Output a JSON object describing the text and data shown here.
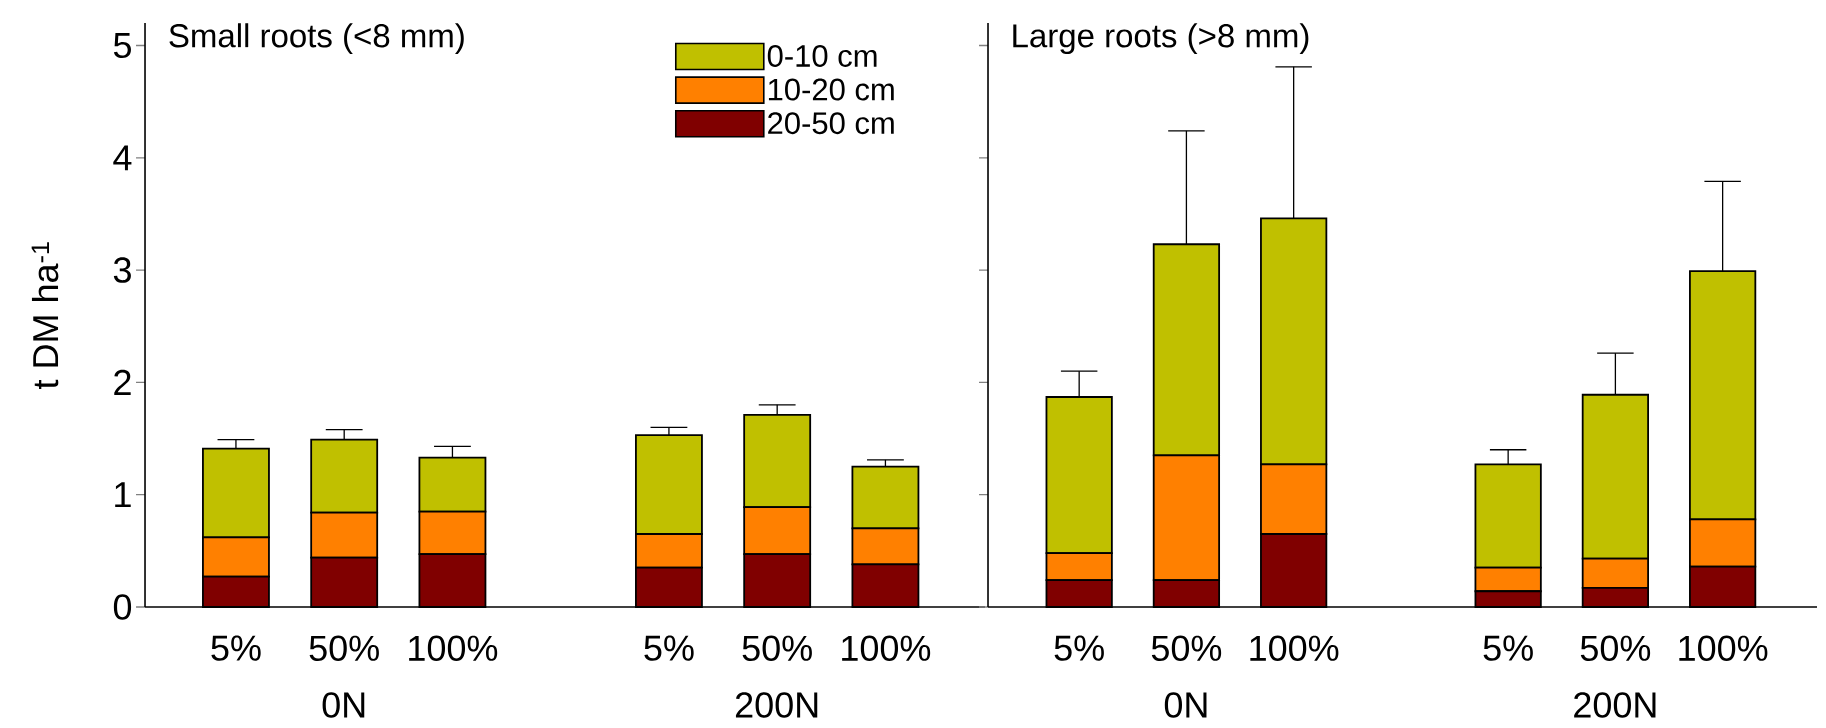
{
  "chart_data": [
    {
      "type": "bar",
      "stacked": true,
      "title": "Small roots (<8 mm)",
      "ylabel": "t DM ha$^{-1}$",
      "categories": [
        "5%",
        "50%",
        "100%",
        null,
        "5%",
        "50%",
        "100%"
      ],
      "series": [
        {
          "name": "20-50 cm",
          "color": "#800000",
          "values": [
            0.27,
            0.44,
            0.47,
            null,
            0.35,
            0.47,
            0.38
          ]
        },
        {
          "name": "10-20 cm",
          "color": "#ff8000",
          "values": [
            0.35,
            0.4,
            0.38,
            null,
            0.3,
            0.42,
            0.32
          ]
        },
        {
          "name": "0-10 cm",
          "color": "#c0c000",
          "values": [
            0.79,
            0.65,
            0.48,
            null,
            0.88,
            0.82,
            0.55
          ],
          "errors": [
            [
              1.41,
              1.49
            ],
            [
              1.49,
              1.58
            ],
            [
              1.33,
              1.43
            ],
            null,
            [
              1.53,
              1.6
            ],
            [
              1.71,
              1.8
            ],
            [
              1.25,
              1.31
            ]
          ]
        }
      ],
      "ylim": [
        0,
        5.2
      ],
      "yticks": [
        0,
        1,
        2,
        3,
        4,
        5
      ],
      "legend": "top right",
      "annotations": [
        "0N",
        "200N"
      ]
    },
    {
      "type": "bar",
      "stacked": true,
      "title": "Large roots (>8 mm)",
      "categories": [
        "5%",
        "50%",
        "100%",
        null,
        "5%",
        "50%",
        "100%"
      ],
      "series": [
        {
          "color": "#800000",
          "values": [
            0.24,
            0.24,
            0.65,
            null,
            0.14,
            0.17,
            0.36
          ]
        },
        {
          "color": "#ff8000",
          "values": [
            0.24,
            1.11,
            0.62,
            null,
            0.21,
            0.26,
            0.42
          ]
        },
        {
          "color": "#c0c000",
          "values": [
            1.39,
            1.88,
            2.19,
            null,
            0.92,
            1.46,
            2.21
          ],
          "errors": [
            [
              1.87,
              2.1
            ],
            [
              3.23,
              4.24
            ],
            [
              3.46,
              4.81
            ],
            null,
            [
              1.27,
              1.4
            ],
            [
              1.89,
              2.26
            ],
            [
              2.99,
              3.79
            ]
          ]
        }
      ],
      "ylim": [
        0,
        5.2
      ],
      "yticks": [
        0,
        1,
        2,
        3,
        4,
        5
      ],
      "tick_labels": "x",
      "annotations": [
        "0N",
        "200N"
      ]
    }
  ]
}
